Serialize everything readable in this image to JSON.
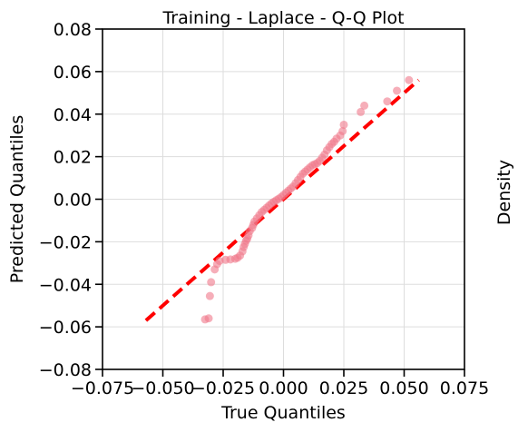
{
  "chart_data": {
    "type": "scatter",
    "title": "Training - Laplace - Q-Q Plot",
    "xlabel": "True Quantiles",
    "ylabel": "Predicted Quantiles",
    "xlim": [
      -0.075,
      0.075
    ],
    "ylim": [
      -0.08,
      0.08
    ],
    "xticks": [
      -0.075,
      -0.05,
      -0.025,
      0.0,
      0.025,
      0.05,
      0.075
    ],
    "xtick_labels": [
      "−0.075",
      "−0.050",
      "−0.025",
      "0.000",
      "0.025",
      "0.050",
      "0.075"
    ],
    "yticks": [
      -0.08,
      -0.06,
      -0.04,
      -0.02,
      0.0,
      0.02,
      0.04,
      0.06,
      0.08
    ],
    "ytick_labels": [
      "−0.08",
      "−0.06",
      "−0.04",
      "−0.02",
      "0.00",
      "0.02",
      "0.04",
      "0.06",
      "0.08"
    ],
    "grid": true,
    "colors": {
      "points": "#f0788a",
      "reference_line": "#ff0000"
    },
    "reference_line": {
      "style": "dashed",
      "from": [
        -0.057,
        -0.057
      ],
      "to": [
        0.056,
        0.056
      ]
    },
    "points": [
      [
        -0.0325,
        -0.0565
      ],
      [
        -0.031,
        -0.056
      ],
      [
        -0.0305,
        -0.0455
      ],
      [
        -0.03,
        -0.039
      ],
      [
        -0.0285,
        -0.033
      ],
      [
        -0.0275,
        -0.0305
      ],
      [
        -0.0265,
        -0.029
      ],
      [
        -0.024,
        -0.0285
      ],
      [
        -0.022,
        -0.0283
      ],
      [
        -0.02,
        -0.028
      ],
      [
        -0.019,
        -0.0275
      ],
      [
        -0.018,
        -0.0265
      ],
      [
        -0.017,
        -0.0245
      ],
      [
        -0.0165,
        -0.0225
      ],
      [
        -0.016,
        -0.021
      ],
      [
        -0.0155,
        -0.0195
      ],
      [
        -0.015,
        -0.0185
      ],
      [
        -0.0145,
        -0.017
      ],
      [
        -0.014,
        -0.015
      ],
      [
        -0.013,
        -0.0135
      ],
      [
        -0.0125,
        -0.012
      ],
      [
        -0.012,
        -0.0105
      ],
      [
        -0.011,
        -0.009
      ],
      [
        -0.01,
        -0.0075
      ],
      [
        -0.009,
        -0.006
      ],
      [
        -0.008,
        -0.005
      ],
      [
        -0.007,
        -0.004
      ],
      [
        -0.006,
        -0.003
      ],
      [
        -0.005,
        -0.002
      ],
      [
        -0.004,
        -0.0012
      ],
      [
        -0.003,
        -0.0005
      ],
      [
        -0.002,
        0.0002
      ],
      [
        -0.001,
        0.001
      ],
      [
        0.0,
        0.002
      ],
      [
        0.001,
        0.003
      ],
      [
        0.002,
        0.004
      ],
      [
        0.003,
        0.005
      ],
      [
        0.004,
        0.006
      ],
      [
        0.005,
        0.0075
      ],
      [
        0.006,
        0.009
      ],
      [
        0.007,
        0.0105
      ],
      [
        0.008,
        0.012
      ],
      [
        0.009,
        0.013
      ],
      [
        0.01,
        0.014
      ],
      [
        0.011,
        0.015
      ],
      [
        0.012,
        0.016
      ],
      [
        0.013,
        0.0165
      ],
      [
        0.014,
        0.017
      ],
      [
        0.015,
        0.018
      ],
      [
        0.016,
        0.0195
      ],
      [
        0.017,
        0.021
      ],
      [
        0.018,
        0.023
      ],
      [
        0.019,
        0.0245
      ],
      [
        0.02,
        0.026
      ],
      [
        0.021,
        0.027
      ],
      [
        0.022,
        0.0285
      ],
      [
        0.0235,
        0.03
      ],
      [
        0.0245,
        0.032
      ],
      [
        0.025,
        0.035
      ],
      [
        0.032,
        0.041
      ],
      [
        0.0335,
        0.044
      ],
      [
        0.043,
        0.046
      ],
      [
        0.047,
        0.051
      ],
      [
        0.052,
        0.056
      ]
    ]
  },
  "side_panel": {
    "ylabel_fragment": "Density"
  }
}
